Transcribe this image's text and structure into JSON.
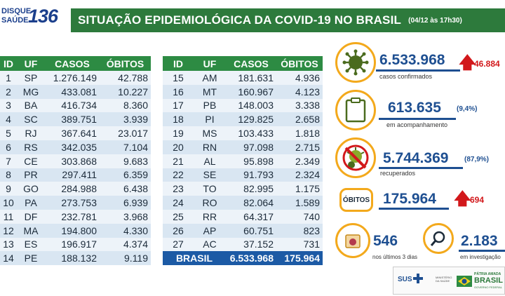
{
  "header": {
    "logo_line1": "DISQUE",
    "logo_line2": "SAÚDE",
    "logo_number": "136",
    "title": "SITUAÇÃO EPIDEMIOLÓGICA DA COVID-19 NO BRASIL",
    "date": "(04/12 às 17h30)"
  },
  "table_headers": [
    "ID",
    "UF",
    "CASOS",
    "ÓBITOS"
  ],
  "table_left": [
    [
      "1",
      "SP",
      "1.276.149",
      "42.788"
    ],
    [
      "2",
      "MG",
      "433.081",
      "10.227"
    ],
    [
      "3",
      "BA",
      "416.734",
      "8.360"
    ],
    [
      "4",
      "SC",
      "389.751",
      "3.939"
    ],
    [
      "5",
      "RJ",
      "367.641",
      "23.017"
    ],
    [
      "6",
      "RS",
      "342.035",
      "7.104"
    ],
    [
      "7",
      "CE",
      "303.868",
      "9.683"
    ],
    [
      "8",
      "PR",
      "297.411",
      "6.359"
    ],
    [
      "9",
      "GO",
      "284.988",
      "6.438"
    ],
    [
      "10",
      "PA",
      "273.753",
      "6.939"
    ],
    [
      "11",
      "DF",
      "232.781",
      "3.968"
    ],
    [
      "12",
      "MA",
      "194.800",
      "4.330"
    ],
    [
      "13",
      "ES",
      "196.917",
      "4.374"
    ],
    [
      "14",
      "PE",
      "188.132",
      "9.119"
    ]
  ],
  "table_right": [
    [
      "15",
      "AM",
      "181.631",
      "4.936"
    ],
    [
      "16",
      "MT",
      "160.967",
      "4.123"
    ],
    [
      "17",
      "PB",
      "148.003",
      "3.338"
    ],
    [
      "18",
      "PI",
      "129.825",
      "2.658"
    ],
    [
      "19",
      "MS",
      "103.433",
      "1.818"
    ],
    [
      "20",
      "RN",
      "97.098",
      "2.715"
    ],
    [
      "21",
      "AL",
      "95.898",
      "2.349"
    ],
    [
      "22",
      "SE",
      "91.793",
      "2.324"
    ],
    [
      "23",
      "TO",
      "82.995",
      "1.175"
    ],
    [
      "24",
      "RO",
      "82.064",
      "1.589"
    ],
    [
      "25",
      "RR",
      "64.317",
      "740"
    ],
    [
      "26",
      "AP",
      "60.751",
      "823"
    ],
    [
      "27",
      "AC",
      "37.152",
      "731"
    ]
  ],
  "total": {
    "label": "BRASIL",
    "cases": "6.533.968",
    "deaths": "175.964"
  },
  "stats": {
    "confirmed": {
      "value": "6.533.968",
      "delta": "46.884",
      "label": "casos confirmados",
      "icon": "virus-icon"
    },
    "monitoring": {
      "value": "613.635",
      "pct": "(9,4%)",
      "label": "em acompanhamento",
      "icon": "clipboard-icon"
    },
    "recovered": {
      "value": "5.744.369",
      "pct": "(87,9%)",
      "label": "recuperados",
      "icon": "crossed-virus-icon"
    },
    "deaths": {
      "badge": "ÓBITOS",
      "value": "175.964",
      "delta": "694"
    },
    "last3days": {
      "value": "546",
      "label": "nos últimos 3 dias",
      "icon": "calendar-icon"
    },
    "investigation": {
      "value": "2.183",
      "label": "em investigação",
      "icon": "magnifier-icon"
    }
  },
  "footer": {
    "sus": "SUS",
    "ministerio": "MINISTÉRIO DA SAÚDE",
    "patria": "PÁTRIA AMADA",
    "brasil": "BRASIL",
    "gov": "GOVERNO FEDERAL"
  },
  "colors": {
    "green": "#2d7a3c",
    "table_header": "#2d8b43",
    "blue": "#1e4f91",
    "accent": "#f3a91c",
    "red": "#d2181b"
  }
}
